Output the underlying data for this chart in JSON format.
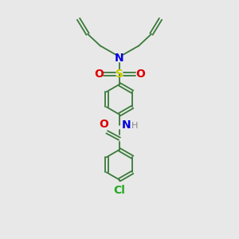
{
  "bg_color": "#e8e8e8",
  "atom_colors": {
    "C": "#3a7a3a",
    "N": "#0000dd",
    "O": "#dd0000",
    "S": "#cccc00",
    "Cl": "#22aa22",
    "H": "#888888"
  },
  "bond_color": "#3a7a3a",
  "bond_lw": 1.3,
  "figsize": [
    3.0,
    3.0
  ],
  "dpi": 100,
  "xlim": [
    0,
    10
  ],
  "ylim": [
    0,
    14
  ]
}
